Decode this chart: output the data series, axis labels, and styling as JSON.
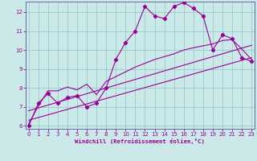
{
  "xlabel": "Windchill (Refroidissement éolien,°C)",
  "bg_color": "#cce9e9",
  "line_color": "#990099",
  "grid_color": "#99cccc",
  "line1_x": [
    0,
    1,
    2,
    3,
    4,
    5,
    6,
    7,
    8,
    9,
    10,
    11,
    12,
    13,
    14,
    15,
    16,
    17,
    18,
    19,
    20,
    21,
    22,
    23
  ],
  "line1_y": [
    6.0,
    7.2,
    7.7,
    7.2,
    7.5,
    7.6,
    7.0,
    7.2,
    8.0,
    9.5,
    10.4,
    11.0,
    12.3,
    11.8,
    11.65,
    12.3,
    12.5,
    12.2,
    11.8,
    10.0,
    10.8,
    10.6,
    9.6,
    9.4
  ],
  "line2_x": [
    0,
    1,
    2,
    3,
    4,
    5,
    6,
    7,
    8,
    9,
    10,
    11,
    12,
    13,
    14,
    15,
    16,
    17,
    18,
    19,
    20,
    21,
    22,
    23
  ],
  "line2_y": [
    6.1,
    7.05,
    7.85,
    7.85,
    8.05,
    7.9,
    8.2,
    7.65,
    8.35,
    8.6,
    8.85,
    9.1,
    9.3,
    9.5,
    9.65,
    9.8,
    10.0,
    10.12,
    10.22,
    10.32,
    10.5,
    10.55,
    10.05,
    9.5
  ],
  "line3_x": [
    0,
    23
  ],
  "line3_y": [
    6.3,
    9.6
  ],
  "line4_x": [
    0,
    23
  ],
  "line4_y": [
    6.8,
    10.25
  ],
  "xlim": [
    -0.3,
    23.3
  ],
  "ylim": [
    5.85,
    12.55
  ],
  "xticks": [
    0,
    1,
    2,
    3,
    4,
    5,
    6,
    7,
    8,
    9,
    10,
    11,
    12,
    13,
    14,
    15,
    16,
    17,
    18,
    19,
    20,
    21,
    22,
    23
  ],
  "yticks": [
    6,
    7,
    8,
    9,
    10,
    11,
    12
  ]
}
